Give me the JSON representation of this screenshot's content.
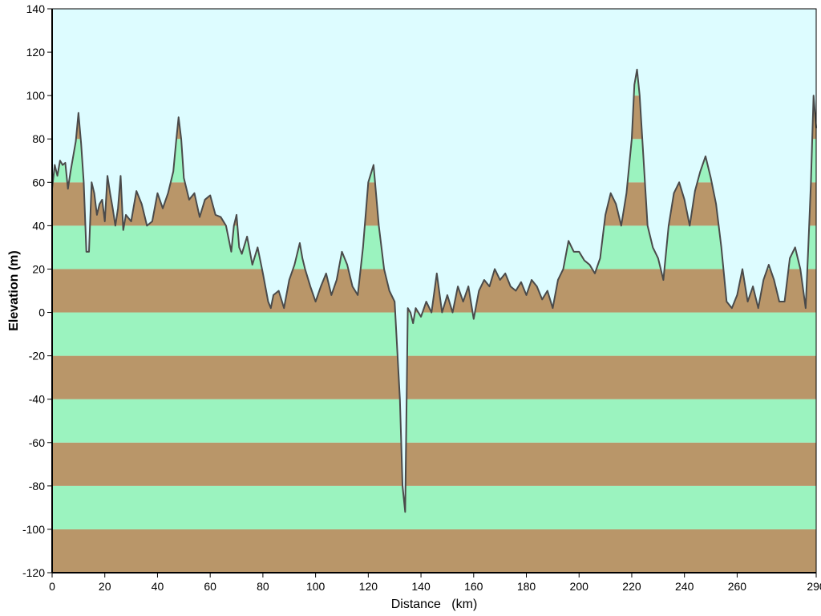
{
  "chart_data": {
    "type": "area",
    "xlabel": "Distance   (km)",
    "ylabel": "Elevation (m)",
    "xlim": [
      0,
      290
    ],
    "ylim": [
      -120,
      140
    ],
    "x_ticks": [
      0,
      20,
      40,
      60,
      80,
      100,
      120,
      140,
      160,
      180,
      200,
      220,
      240,
      260,
      290
    ],
    "y_ticks": [
      -120,
      -100,
      -80,
      -60,
      -40,
      -20,
      0,
      20,
      40,
      60,
      80,
      100,
      120,
      140
    ],
    "grid": false,
    "legend": "none",
    "band_size": 20,
    "colors": {
      "sky": "#DDFCFF",
      "band_brown": "#B99669",
      "band_green": "#9BF3BF",
      "profile_line": "#4A4A4A",
      "axis": "#000000"
    },
    "series": [
      {
        "x": [
          0,
          1,
          2,
          3,
          4,
          5,
          6,
          7,
          8,
          9,
          10,
          11,
          12,
          13,
          14,
          15,
          16,
          17,
          18,
          19,
          20,
          21,
          22,
          23,
          24,
          25,
          26,
          27,
          28,
          30,
          32,
          34,
          36,
          38,
          40,
          42,
          44,
          46,
          47,
          48,
          49,
          50,
          52,
          54,
          56,
          58,
          60,
          62,
          64,
          66,
          68,
          69,
          70,
          71,
          72,
          74,
          76,
          78,
          80,
          82,
          83,
          84,
          86,
          88,
          90,
          92,
          94,
          95,
          96,
          98,
          100,
          102,
          104,
          106,
          108,
          110,
          112,
          114,
          116,
          118,
          120,
          122,
          124,
          126,
          128,
          130,
          132,
          133,
          134,
          135,
          136,
          137,
          138,
          140,
          142,
          144,
          146,
          148,
          150,
          152,
          154,
          156,
          158,
          160,
          162,
          164,
          166,
          168,
          170,
          172,
          174,
          176,
          178,
          180,
          182,
          184,
          186,
          188,
          190,
          192,
          194,
          196,
          198,
          200,
          202,
          204,
          206,
          208,
          210,
          212,
          214,
          216,
          218,
          220,
          221,
          222,
          223,
          224,
          226,
          228,
          230,
          232,
          234,
          236,
          238,
          240,
          242,
          244,
          246,
          248,
          250,
          252,
          254,
          256,
          258,
          260,
          262,
          264,
          266,
          268,
          270,
          272,
          274,
          276,
          278,
          280,
          282,
          284,
          286,
          287,
          288,
          289,
          290
        ],
        "y": [
          57,
          68,
          63,
          70,
          68,
          69,
          57,
          65,
          72,
          79,
          92,
          78,
          60,
          28,
          28,
          60,
          55,
          45,
          50,
          52,
          42,
          63,
          55,
          48,
          40,
          48,
          63,
          38,
          45,
          42,
          56,
          50,
          40,
          42,
          55,
          48,
          55,
          65,
          78,
          90,
          80,
          62,
          52,
          55,
          44,
          52,
          54,
          45,
          44,
          40,
          28,
          40,
          45,
          30,
          27,
          35,
          22,
          30,
          18,
          5,
          2,
          8,
          10,
          2,
          15,
          22,
          32,
          25,
          20,
          12,
          5,
          12,
          18,
          8,
          15,
          28,
          22,
          12,
          8,
          30,
          60,
          68,
          40,
          20,
          10,
          5,
          -40,
          -80,
          -92,
          2,
          0,
          -5,
          2,
          -2,
          5,
          0,
          18,
          0,
          8,
          0,
          12,
          5,
          12,
          -3,
          10,
          15,
          12,
          20,
          15,
          18,
          12,
          10,
          14,
          8,
          15,
          12,
          6,
          10,
          2,
          15,
          20,
          33,
          28,
          28,
          24,
          22,
          18,
          25,
          45,
          55,
          50,
          40,
          55,
          80,
          105,
          112,
          100,
          80,
          40,
          30,
          25,
          15,
          40,
          55,
          60,
          52,
          40,
          56,
          65,
          72,
          62,
          50,
          30,
          5,
          2,
          8,
          20,
          5,
          12,
          2,
          15,
          22,
          15,
          5,
          5,
          25,
          30,
          20,
          2,
          30,
          60,
          100,
          85
        ]
      }
    ]
  }
}
